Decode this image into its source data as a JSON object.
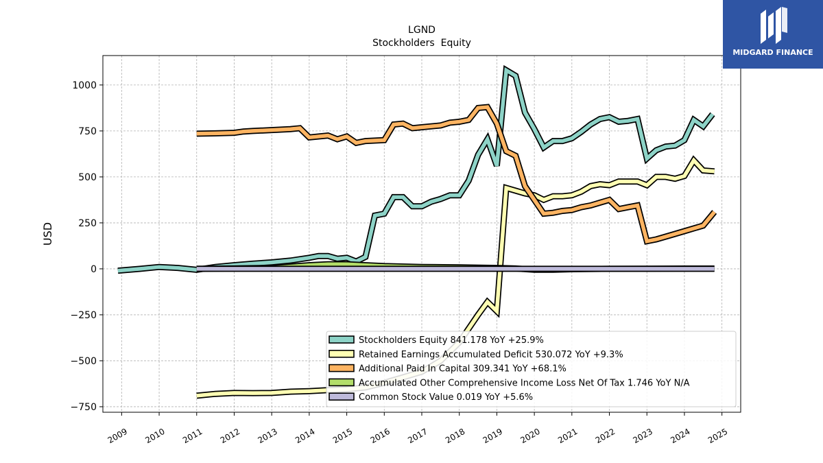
{
  "brand": {
    "name": "MIDGARD FINANCE",
    "color": "#2f55a4"
  },
  "chart_data": {
    "type": "line",
    "title": "LGND",
    "subtitle": "Stockholders  Equity",
    "ylabel": "USD",
    "xlabel": "",
    "ylim": [
      -780,
      1160
    ],
    "xlim": [
      2008.5,
      2025.5
    ],
    "yticks": [
      -750,
      -500,
      -250,
      0,
      250,
      500,
      750,
      1000
    ],
    "ytick_labels": [
      "−750",
      "−500",
      "−250",
      "0",
      "250",
      "500",
      "750",
      "1000"
    ],
    "xticks": [
      "2009",
      "2010",
      "2011",
      "2012",
      "2013",
      "2014",
      "2015",
      "2016",
      "2017",
      "2018",
      "2019",
      "2020",
      "2021",
      "2022",
      "2023",
      "2024",
      "2025"
    ],
    "grid": true,
    "legend_position": "lower-right",
    "series": [
      {
        "name": "Stockholders Equity",
        "legend": "Stockholders Equity  841.178 YoY +25.9%",
        "color": "#8dd3c7",
        "points": [
          [
            2008.9,
            -10
          ],
          [
            2009.5,
            0
          ],
          [
            2010.0,
            10
          ],
          [
            2010.5,
            5
          ],
          [
            2011.0,
            -5
          ],
          [
            2011.5,
            10
          ],
          [
            2012.0,
            20
          ],
          [
            2012.5,
            28
          ],
          [
            2013.0,
            35
          ],
          [
            2013.5,
            45
          ],
          [
            2014.0,
            60
          ],
          [
            2014.25,
            70
          ],
          [
            2014.5,
            70
          ],
          [
            2014.75,
            55
          ],
          [
            2015.0,
            60
          ],
          [
            2015.25,
            40
          ],
          [
            2015.5,
            65
          ],
          [
            2015.75,
            290
          ],
          [
            2016.0,
            300
          ],
          [
            2016.25,
            390
          ],
          [
            2016.5,
            390
          ],
          [
            2016.75,
            340
          ],
          [
            2017.0,
            340
          ],
          [
            2017.25,
            365
          ],
          [
            2017.5,
            380
          ],
          [
            2017.75,
            400
          ],
          [
            2018.0,
            400
          ],
          [
            2018.25,
            480
          ],
          [
            2018.5,
            620
          ],
          [
            2018.75,
            705
          ],
          [
            2019.0,
            560
          ],
          [
            2019.25,
            1080
          ],
          [
            2019.5,
            1050
          ],
          [
            2019.75,
            850
          ],
          [
            2020.0,
            760
          ],
          [
            2020.25,
            660
          ],
          [
            2020.5,
            695
          ],
          [
            2020.75,
            695
          ],
          [
            2021.0,
            710
          ],
          [
            2021.25,
            745
          ],
          [
            2021.5,
            785
          ],
          [
            2021.75,
            815
          ],
          [
            2022.0,
            825
          ],
          [
            2022.25,
            800
          ],
          [
            2022.5,
            805
          ],
          [
            2022.75,
            815
          ],
          [
            2023.0,
            600
          ],
          [
            2023.25,
            645
          ],
          [
            2023.5,
            665
          ],
          [
            2023.75,
            670
          ],
          [
            2024.0,
            700
          ],
          [
            2024.25,
            810
          ],
          [
            2024.5,
            775
          ],
          [
            2024.75,
            841.178
          ]
        ]
      },
      {
        "name": "Retained Earnings Accumulated Deficit",
        "legend": "Retained Earnings Accumulated Deficit  530.072 YoY +9.3%",
        "color": "#ffffb3",
        "points": [
          [
            2011.0,
            -690
          ],
          [
            2011.5,
            -680
          ],
          [
            2012.0,
            -675
          ],
          [
            2012.5,
            -676
          ],
          [
            2013.0,
            -675
          ],
          [
            2013.5,
            -668
          ],
          [
            2014.0,
            -665
          ],
          [
            2014.5,
            -660
          ],
          [
            2015.0,
            -655
          ],
          [
            2015.5,
            -645
          ],
          [
            2016.0,
            -620
          ],
          [
            2016.5,
            -590
          ],
          [
            2017.0,
            -560
          ],
          [
            2017.5,
            -500
          ],
          [
            2018.0,
            -400
          ],
          [
            2018.5,
            -250
          ],
          [
            2018.75,
            -180
          ],
          [
            2019.0,
            -230
          ],
          [
            2019.25,
            440
          ],
          [
            2019.5,
            425
          ],
          [
            2019.75,
            410
          ],
          [
            2020.0,
            400
          ],
          [
            2020.25,
            375
          ],
          [
            2020.5,
            395
          ],
          [
            2020.75,
            395
          ],
          [
            2021.0,
            400
          ],
          [
            2021.25,
            420
          ],
          [
            2021.5,
            450
          ],
          [
            2021.75,
            460
          ],
          [
            2022.0,
            455
          ],
          [
            2022.25,
            475
          ],
          [
            2022.5,
            475
          ],
          [
            2022.75,
            475
          ],
          [
            2023.0,
            455
          ],
          [
            2023.25,
            500
          ],
          [
            2023.5,
            500
          ],
          [
            2023.75,
            490
          ],
          [
            2024.0,
            505
          ],
          [
            2024.25,
            590
          ],
          [
            2024.5,
            535
          ],
          [
            2024.8,
            530.072
          ]
        ]
      },
      {
        "name": "Additional Paid In Capital",
        "legend": "Additional Paid In Capital  309.341 YoY +68.1%",
        "color": "#fdb462",
        "points": [
          [
            2011.0,
            735
          ],
          [
            2011.5,
            737
          ],
          [
            2012.0,
            740
          ],
          [
            2012.25,
            747
          ],
          [
            2012.5,
            750
          ],
          [
            2013.0,
            755
          ],
          [
            2013.5,
            760
          ],
          [
            2013.75,
            765
          ],
          [
            2014.0,
            715
          ],
          [
            2014.5,
            725
          ],
          [
            2014.75,
            705
          ],
          [
            2015.0,
            720
          ],
          [
            2015.25,
            685
          ],
          [
            2015.5,
            695
          ],
          [
            2016.0,
            700
          ],
          [
            2016.25,
            785
          ],
          [
            2016.5,
            790
          ],
          [
            2016.75,
            765
          ],
          [
            2017.0,
            770
          ],
          [
            2017.5,
            780
          ],
          [
            2017.75,
            795
          ],
          [
            2018.0,
            800
          ],
          [
            2018.25,
            810
          ],
          [
            2018.5,
            875
          ],
          [
            2018.75,
            880
          ],
          [
            2019.0,
            790
          ],
          [
            2019.25,
            640
          ],
          [
            2019.5,
            615
          ],
          [
            2019.75,
            450
          ],
          [
            2020.0,
            375
          ],
          [
            2020.25,
            300
          ],
          [
            2020.5,
            305
          ],
          [
            2020.75,
            315
          ],
          [
            2021.0,
            320
          ],
          [
            2021.25,
            335
          ],
          [
            2021.5,
            345
          ],
          [
            2021.75,
            360
          ],
          [
            2022.0,
            375
          ],
          [
            2022.25,
            325
          ],
          [
            2022.5,
            335
          ],
          [
            2022.75,
            345
          ],
          [
            2023.0,
            150
          ],
          [
            2023.25,
            160
          ],
          [
            2023.5,
            175
          ],
          [
            2023.75,
            190
          ],
          [
            2024.0,
            205
          ],
          [
            2024.5,
            235
          ],
          [
            2024.8,
            309.341
          ]
        ]
      },
      {
        "name": "Accumulated Other Comprehensive Income Loss Net Of Tax",
        "legend": "Accumulated Other Comprehensive Income Loss Net Of Tax  1.746 YoY N/A",
        "color": "#b3de69",
        "points": [
          [
            2011.0,
            0
          ],
          [
            2012.0,
            2
          ],
          [
            2013.0,
            5
          ],
          [
            2014.0,
            20
          ],
          [
            2014.5,
            25
          ],
          [
            2015.0,
            25
          ],
          [
            2015.5,
            20
          ],
          [
            2016.0,
            15
          ],
          [
            2017.0,
            10
          ],
          [
            2018.0,
            8
          ],
          [
            2019.0,
            5
          ],
          [
            2019.5,
            2
          ],
          [
            2020.0,
            -5
          ],
          [
            2020.5,
            -5
          ],
          [
            2021.0,
            -2
          ],
          [
            2022.0,
            0
          ],
          [
            2023.0,
            1
          ],
          [
            2024.0,
            1.5
          ],
          [
            2024.8,
            1.746
          ]
        ]
      },
      {
        "name": "Common Stock Value",
        "legend": "Common Stock Value  0.019 YoY +5.6%",
        "color": "#bebada",
        "points": [
          [
            2011.0,
            0
          ],
          [
            2024.8,
            0.019
          ]
        ]
      }
    ]
  }
}
